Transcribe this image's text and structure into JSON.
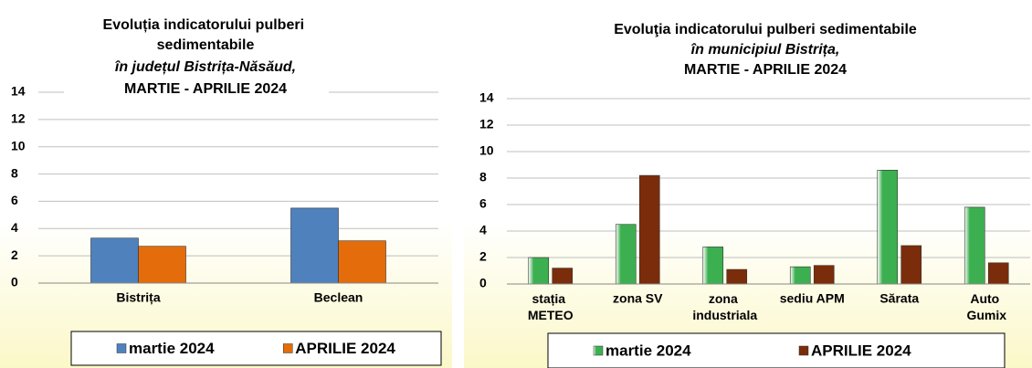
{
  "chart_data": [
    {
      "type": "bar",
      "title": "Evoluția indicatorului pulberi sedimentabile",
      "subtitle": "în județul Bistrița-Năsăud,",
      "period": "MARTIE - APRILIE 2024",
      "categories": [
        "Bistrița",
        "Beclean"
      ],
      "series": [
        {
          "name": "martie 2024",
          "color": "#4f81bd",
          "values": [
            3.3,
            5.5
          ]
        },
        {
          "name": "APRILIE 2024",
          "color": "#e46c0a",
          "values": [
            2.7,
            3.1
          ]
        }
      ],
      "ylim": [
        0,
        14
      ],
      "yticks": [
        0,
        2,
        4,
        6,
        8,
        10,
        12,
        14
      ],
      "grid": true
    },
    {
      "type": "bar",
      "title": "Evoluţia indicatorului pulberi sedimentabile",
      "subtitle": "în municipiul Bistrița,",
      "period": "MARTIE - APRILIE 2024",
      "categories": [
        "stația METEO",
        "zona SV",
        "zona industriala",
        "sediu APM",
        "Sărata",
        "Auto Gumix"
      ],
      "series": [
        {
          "name": "martie 2024",
          "color": "#3cb050",
          "values": [
            2.0,
            4.5,
            2.8,
            1.3,
            8.6,
            5.8
          ]
        },
        {
          "name": "APRILIE 2024",
          "color": "#7b2c0a",
          "values": [
            1.2,
            8.2,
            1.1,
            1.4,
            2.9,
            1.6
          ]
        }
      ],
      "ylim": [
        0,
        14
      ],
      "yticks": [
        0,
        2,
        4,
        6,
        8,
        10,
        12,
        14
      ],
      "grid": true
    }
  ]
}
